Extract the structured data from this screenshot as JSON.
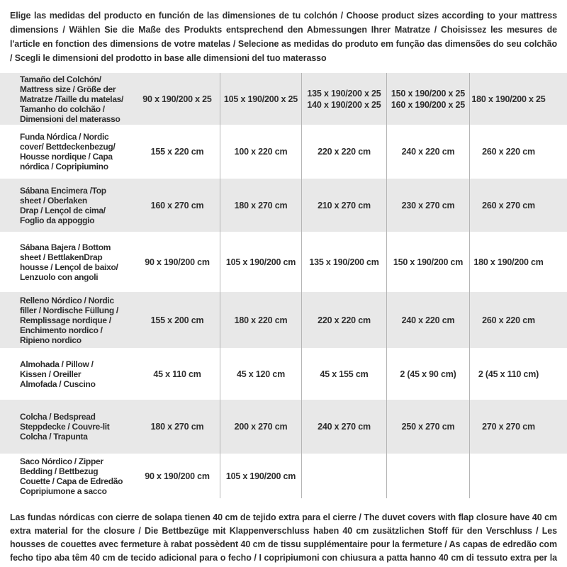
{
  "header_note": "Elige las medidas del producto en función de las dimensiones de tu colchón / Choose product sizes according to your mattress dimensions / Wählen Sie die Maße des Produkts entsprechend den Abmessungen Ihrer Matratze / Choisissez les mesures de l'article en fonction des dimensions de votre matelas / Selecione as medidas do produto em função das dimensões do seu colchão / Scegli le dimensioni del prodotto in base alle dimensioni del tuo materasso",
  "footer_note": "Las fundas nórdicas con cierre de solapa tienen 40 cm de tejido extra para el cierre  /  The duvet covers with flap closure have 40 cm extra material for the closure / Die Bettbezüge mit Klappenverschluss haben 40 cm zusätzlichen Stoff für den Verschluss / Les housses de couettes avec fermeture à rabat possèdent 40 cm de tissu supplémentaire pour la fermeture / As capas de edredão com fecho tipo aba têm 40 cm de tecido adicional para o fecho / I copripiumoni con chiusura a patta hanno 40 cm di tessuto extra per la chiusura",
  "colors": {
    "background": "#ffffff",
    "row_stripe": "#e8e8e8",
    "divider": "#b5b5b5",
    "text": "#2e2e2e"
  },
  "chart_data": {
    "type": "table",
    "header_row": {
      "label": "Tamaño del Colchón/\nMattress size / Größe der\nMatratze /Taille du matelas/\nTamanho do colchão /\nDimensioni del materasso",
      "columns": [
        "90 x 190/200 x 25",
        "105 x 190/200 x 25",
        "135 x 190/200 x 25\n140 x 190/200 x 25",
        "150 x 190/200 x 25\n160 x 190/200 x 25",
        "180 x 190/200 x 25"
      ]
    },
    "rows": [
      {
        "label": "Funda Nórdica /  Nordic\ncover/ Bettdeckenbezug/\nHousse nordique  / Capa\nnórdica / Copripiumino",
        "values": [
          "155 x 220 cm",
          "100 x 220 cm",
          "220 x 220 cm",
          "240 x 220 cm",
          "260 x 220 cm"
        ]
      },
      {
        "label": "Sábana Encimera /Top\nsheet / Oberlaken\nDrap / Lençol de cima/\nFoglio da appoggio",
        "values": [
          "160 x 270 cm",
          "180 x 270 cm",
          "210 x 270 cm",
          "230 x 270 cm",
          "260 x 270 cm"
        ]
      },
      {
        "label": "Sábana Bajera / Bottom\nsheet / BettlakenDrap\nhousse / Lençol de baixo/\nLenzuolo con angoli",
        "values": [
          "90 x 190/200 cm",
          "105 x 190/200 cm",
          "135 x 190/200 cm",
          "150 x 190/200 cm",
          "180 x 190/200 cm"
        ]
      },
      {
        "label": "Relleno Nórdico / Nordic\nfiller / Nordische Füllung /\nRemplissage nordique /\nEnchimento nordico /\nRipieno nordico",
        "values": [
          "155 x 200 cm",
          "180 x 220 cm",
          "220 x 220 cm",
          "240 x 220 cm",
          "260 x 220 cm"
        ]
      },
      {
        "label": "Almohada  / Pillow /\nKissen / Oreiller\nAlmofada / Cuscino",
        "values": [
          "45 x 110 cm",
          "45 x 120 cm",
          "45 x 155 cm",
          "2 (45 x 90 cm)",
          "2 (45 x 110 cm)"
        ]
      },
      {
        "label": "Colcha / Bedspread\nSteppdecke / Couvre-lit\nColcha / Trapunta",
        "values": [
          "180 x 270 cm",
          "200 x 270 cm",
          "240 x 270 cm",
          "250 x 270 cm",
          "270 x 270 cm"
        ]
      },
      {
        "label": "Saco Nórdico / Zipper\nBedding / Bettbezug\nCouette  / Capa de Edredão\nCopripiumone a sacco",
        "values": [
          "90 x 190/200 cm",
          "105 x 190/200 cm",
          "",
          "",
          ""
        ]
      }
    ]
  }
}
